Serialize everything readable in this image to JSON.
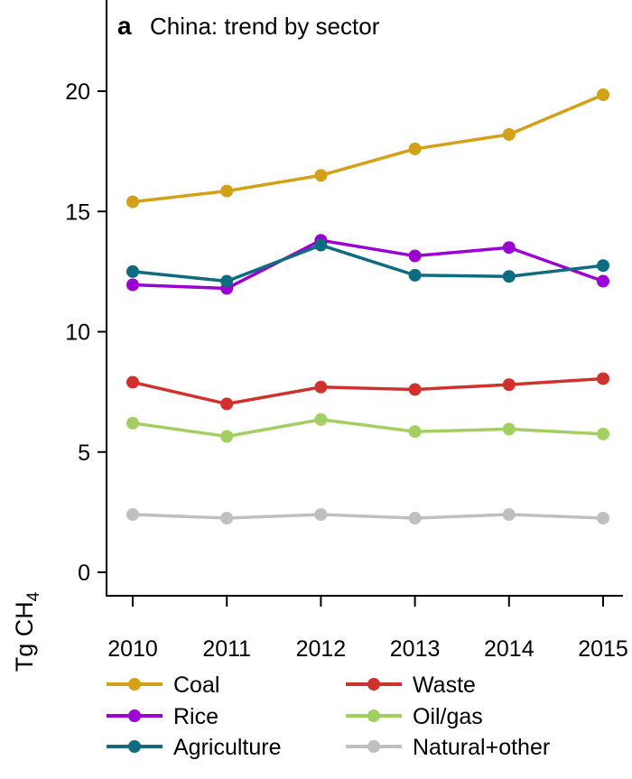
{
  "chart_data": {
    "type": "line",
    "panel_label": "a",
    "title": "China: trend by sector",
    "ylabel_main": "Tg CH",
    "ylabel_sub": "4",
    "xlabel": "",
    "categories": [
      "2010",
      "2011",
      "2012",
      "2013",
      "2014",
      "2015"
    ],
    "ylim": [
      -1,
      23
    ],
    "yticks": [
      0,
      5,
      10,
      15,
      20
    ],
    "ytick_labels": [
      "0",
      "5",
      "10",
      "15",
      "20"
    ],
    "legend_position": "bottom",
    "series": [
      {
        "name": "Coal",
        "color": "#d4a017",
        "values": [
          15.4,
          15.85,
          16.5,
          17.6,
          18.2,
          19.85
        ]
      },
      {
        "name": "Rice",
        "color": "#9b00d3",
        "values": [
          11.95,
          11.8,
          13.8,
          13.15,
          13.5,
          12.1
        ]
      },
      {
        "name": "Agriculture",
        "color": "#0f6b80",
        "values": [
          12.5,
          12.1,
          13.6,
          12.35,
          12.3,
          12.75
        ]
      },
      {
        "name": "Waste",
        "color": "#d0312d",
        "values": [
          7.9,
          7.0,
          7.7,
          7.6,
          7.8,
          8.05
        ]
      },
      {
        "name": "Oil/gas",
        "color": "#a3cf62",
        "values": [
          6.2,
          5.65,
          6.35,
          5.85,
          5.95,
          5.75
        ]
      },
      {
        "name": "Natural+other",
        "color": "#bfbfbf",
        "values": [
          2.4,
          2.25,
          2.4,
          2.25,
          2.4,
          2.25
        ]
      }
    ]
  }
}
